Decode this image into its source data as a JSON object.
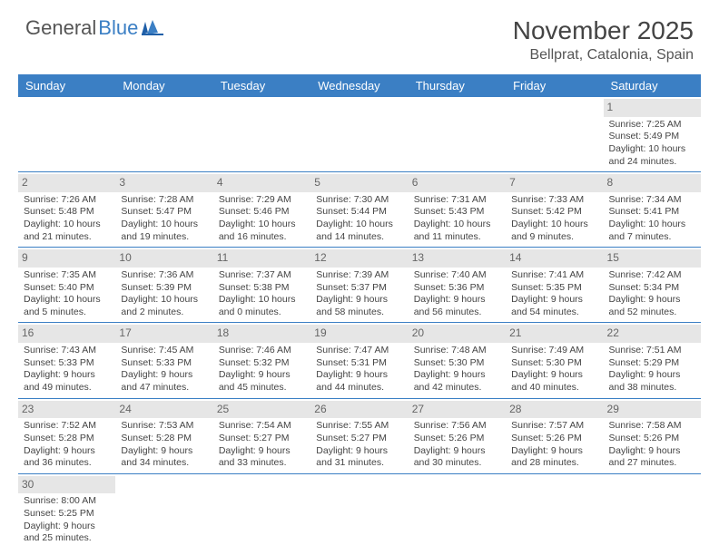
{
  "logo": {
    "part1": "General",
    "part2": "Blue"
  },
  "title": "November 2025",
  "location": "Bellprat, Catalonia, Spain",
  "colors": {
    "header_bg": "#3b7fc4",
    "header_text": "#ffffff",
    "daynum_bg": "#e6e6e6",
    "daynum_text": "#666666",
    "border": "#3b7fc4",
    "body_text": "#444444"
  },
  "weekdays": [
    "Sunday",
    "Monday",
    "Tuesday",
    "Wednesday",
    "Thursday",
    "Friday",
    "Saturday"
  ],
  "weeks": [
    [
      {
        "day": "",
        "lines": [
          "",
          "",
          "",
          ""
        ]
      },
      {
        "day": "",
        "lines": [
          "",
          "",
          "",
          ""
        ]
      },
      {
        "day": "",
        "lines": [
          "",
          "",
          "",
          ""
        ]
      },
      {
        "day": "",
        "lines": [
          "",
          "",
          "",
          ""
        ]
      },
      {
        "day": "",
        "lines": [
          "",
          "",
          "",
          ""
        ]
      },
      {
        "day": "",
        "lines": [
          "",
          "",
          "",
          ""
        ]
      },
      {
        "day": "1",
        "lines": [
          "Sunrise: 7:25 AM",
          "Sunset: 5:49 PM",
          "Daylight: 10 hours",
          "and 24 minutes."
        ]
      }
    ],
    [
      {
        "day": "2",
        "lines": [
          "Sunrise: 7:26 AM",
          "Sunset: 5:48 PM",
          "Daylight: 10 hours",
          "and 21 minutes."
        ]
      },
      {
        "day": "3",
        "lines": [
          "Sunrise: 7:28 AM",
          "Sunset: 5:47 PM",
          "Daylight: 10 hours",
          "and 19 minutes."
        ]
      },
      {
        "day": "4",
        "lines": [
          "Sunrise: 7:29 AM",
          "Sunset: 5:46 PM",
          "Daylight: 10 hours",
          "and 16 minutes."
        ]
      },
      {
        "day": "5",
        "lines": [
          "Sunrise: 7:30 AM",
          "Sunset: 5:44 PM",
          "Daylight: 10 hours",
          "and 14 minutes."
        ]
      },
      {
        "day": "6",
        "lines": [
          "Sunrise: 7:31 AM",
          "Sunset: 5:43 PM",
          "Daylight: 10 hours",
          "and 11 minutes."
        ]
      },
      {
        "day": "7",
        "lines": [
          "Sunrise: 7:33 AM",
          "Sunset: 5:42 PM",
          "Daylight: 10 hours",
          "and 9 minutes."
        ]
      },
      {
        "day": "8",
        "lines": [
          "Sunrise: 7:34 AM",
          "Sunset: 5:41 PM",
          "Daylight: 10 hours",
          "and 7 minutes."
        ]
      }
    ],
    [
      {
        "day": "9",
        "lines": [
          "Sunrise: 7:35 AM",
          "Sunset: 5:40 PM",
          "Daylight: 10 hours",
          "and 5 minutes."
        ]
      },
      {
        "day": "10",
        "lines": [
          "Sunrise: 7:36 AM",
          "Sunset: 5:39 PM",
          "Daylight: 10 hours",
          "and 2 minutes."
        ]
      },
      {
        "day": "11",
        "lines": [
          "Sunrise: 7:37 AM",
          "Sunset: 5:38 PM",
          "Daylight: 10 hours",
          "and 0 minutes."
        ]
      },
      {
        "day": "12",
        "lines": [
          "Sunrise: 7:39 AM",
          "Sunset: 5:37 PM",
          "Daylight: 9 hours",
          "and 58 minutes."
        ]
      },
      {
        "day": "13",
        "lines": [
          "Sunrise: 7:40 AM",
          "Sunset: 5:36 PM",
          "Daylight: 9 hours",
          "and 56 minutes."
        ]
      },
      {
        "day": "14",
        "lines": [
          "Sunrise: 7:41 AM",
          "Sunset: 5:35 PM",
          "Daylight: 9 hours",
          "and 54 minutes."
        ]
      },
      {
        "day": "15",
        "lines": [
          "Sunrise: 7:42 AM",
          "Sunset: 5:34 PM",
          "Daylight: 9 hours",
          "and 52 minutes."
        ]
      }
    ],
    [
      {
        "day": "16",
        "lines": [
          "Sunrise: 7:43 AM",
          "Sunset: 5:33 PM",
          "Daylight: 9 hours",
          "and 49 minutes."
        ]
      },
      {
        "day": "17",
        "lines": [
          "Sunrise: 7:45 AM",
          "Sunset: 5:33 PM",
          "Daylight: 9 hours",
          "and 47 minutes."
        ]
      },
      {
        "day": "18",
        "lines": [
          "Sunrise: 7:46 AM",
          "Sunset: 5:32 PM",
          "Daylight: 9 hours",
          "and 45 minutes."
        ]
      },
      {
        "day": "19",
        "lines": [
          "Sunrise: 7:47 AM",
          "Sunset: 5:31 PM",
          "Daylight: 9 hours",
          "and 44 minutes."
        ]
      },
      {
        "day": "20",
        "lines": [
          "Sunrise: 7:48 AM",
          "Sunset: 5:30 PM",
          "Daylight: 9 hours",
          "and 42 minutes."
        ]
      },
      {
        "day": "21",
        "lines": [
          "Sunrise: 7:49 AM",
          "Sunset: 5:30 PM",
          "Daylight: 9 hours",
          "and 40 minutes."
        ]
      },
      {
        "day": "22",
        "lines": [
          "Sunrise: 7:51 AM",
          "Sunset: 5:29 PM",
          "Daylight: 9 hours",
          "and 38 minutes."
        ]
      }
    ],
    [
      {
        "day": "23",
        "lines": [
          "Sunrise: 7:52 AM",
          "Sunset: 5:28 PM",
          "Daylight: 9 hours",
          "and 36 minutes."
        ]
      },
      {
        "day": "24",
        "lines": [
          "Sunrise: 7:53 AM",
          "Sunset: 5:28 PM",
          "Daylight: 9 hours",
          "and 34 minutes."
        ]
      },
      {
        "day": "25",
        "lines": [
          "Sunrise: 7:54 AM",
          "Sunset: 5:27 PM",
          "Daylight: 9 hours",
          "and 33 minutes."
        ]
      },
      {
        "day": "26",
        "lines": [
          "Sunrise: 7:55 AM",
          "Sunset: 5:27 PM",
          "Daylight: 9 hours",
          "and 31 minutes."
        ]
      },
      {
        "day": "27",
        "lines": [
          "Sunrise: 7:56 AM",
          "Sunset: 5:26 PM",
          "Daylight: 9 hours",
          "and 30 minutes."
        ]
      },
      {
        "day": "28",
        "lines": [
          "Sunrise: 7:57 AM",
          "Sunset: 5:26 PM",
          "Daylight: 9 hours",
          "and 28 minutes."
        ]
      },
      {
        "day": "29",
        "lines": [
          "Sunrise: 7:58 AM",
          "Sunset: 5:26 PM",
          "Daylight: 9 hours",
          "and 27 minutes."
        ]
      }
    ],
    [
      {
        "day": "30",
        "lines": [
          "Sunrise: 8:00 AM",
          "Sunset: 5:25 PM",
          "Daylight: 9 hours",
          "and 25 minutes."
        ]
      },
      {
        "day": "",
        "lines": [
          "",
          "",
          "",
          ""
        ]
      },
      {
        "day": "",
        "lines": [
          "",
          "",
          "",
          ""
        ]
      },
      {
        "day": "",
        "lines": [
          "",
          "",
          "",
          ""
        ]
      },
      {
        "day": "",
        "lines": [
          "",
          "",
          "",
          ""
        ]
      },
      {
        "day": "",
        "lines": [
          "",
          "",
          "",
          ""
        ]
      },
      {
        "day": "",
        "lines": [
          "",
          "",
          "",
          ""
        ]
      }
    ]
  ]
}
